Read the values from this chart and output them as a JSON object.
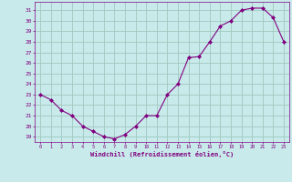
{
  "x": [
    0,
    1,
    2,
    3,
    4,
    5,
    6,
    7,
    8,
    9,
    10,
    11,
    12,
    13,
    14,
    15,
    16,
    17,
    18,
    19,
    20,
    21,
    22,
    23
  ],
  "y": [
    23.0,
    22.5,
    21.5,
    21.0,
    20.0,
    19.5,
    19.0,
    18.8,
    19.2,
    20.0,
    21.0,
    21.0,
    23.0,
    24.0,
    26.5,
    26.6,
    28.0,
    29.5,
    30.0,
    31.0,
    31.2,
    31.2,
    30.3,
    28.0
  ],
  "line_color": "#800080",
  "marker": "D",
  "markersize": 2,
  "bg_color": "#c8eaea",
  "grid_color": "#a0c8c0",
  "xlabel": "Windchill (Refroidissement éolien,°C)",
  "ylabel_ticks": [
    19,
    20,
    21,
    22,
    23,
    24,
    25,
    26,
    27,
    28,
    29,
    30,
    31
  ],
  "xlim": [
    -0.5,
    23.5
  ],
  "ylim": [
    18.5,
    31.8
  ],
  "xlabel_color": "#800080",
  "tick_color": "#800080"
}
